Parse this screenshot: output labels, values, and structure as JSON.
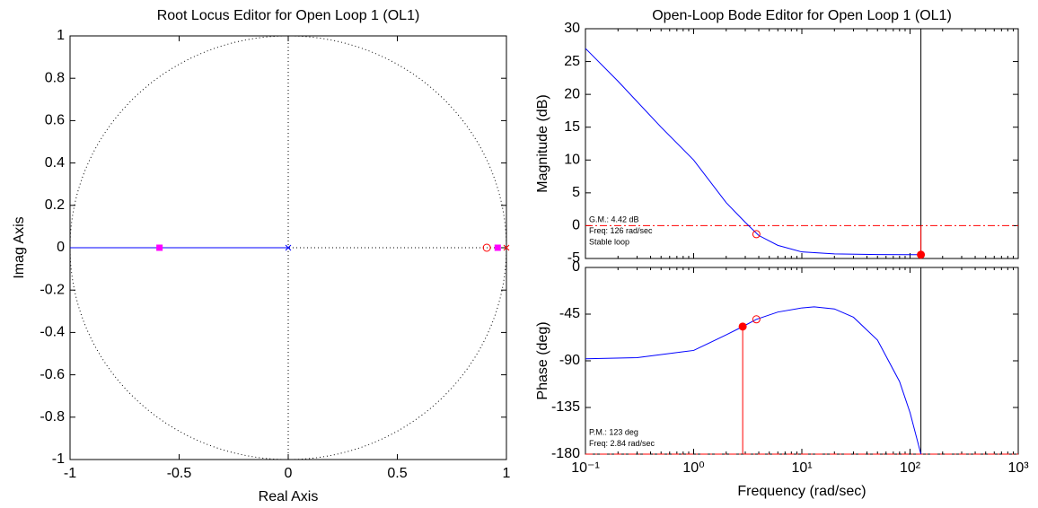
{
  "chart_data": [
    {
      "type": "root-locus",
      "title": "Root Locus Editor for Open Loop 1 (OL1)",
      "xlabel": "Real Axis",
      "ylabel": "Imag Axis",
      "xlim": [
        -1,
        1
      ],
      "ylim": [
        -1,
        1
      ],
      "xticks": [
        -1,
        -0.5,
        0,
        0.5,
        1
      ],
      "yticks": [
        -1,
        -0.8,
        -0.6,
        -0.4,
        -0.2,
        0,
        0.2,
        0.4,
        0.6,
        0.8,
        1
      ],
      "unit_circle": true,
      "origin_lines": true,
      "series": [
        {
          "kind": "line",
          "color": "#0000ff",
          "x": [
            -1,
            0
          ],
          "y": [
            0,
            0
          ]
        },
        {
          "kind": "x-marker",
          "color": "#0000ff",
          "x": [
            0
          ],
          "y": [
            0
          ]
        },
        {
          "kind": "x-marker",
          "color": "#ff0000",
          "x": [
            1
          ],
          "y": [
            0
          ]
        },
        {
          "kind": "circle",
          "color": "#ff0000",
          "x": [
            0.91
          ],
          "y": [
            0
          ]
        },
        {
          "kind": "square",
          "color": "#ff00ff",
          "x": [
            -0.59,
            0.96
          ],
          "y": [
            0,
            0
          ]
        }
      ]
    },
    {
      "type": "bode-magnitude",
      "title": "Open-Loop Bode Editor for Open Loop 1 (OL1)",
      "ylabel": "Magnitude (dB)",
      "log_x": true,
      "xlim": [
        0.1,
        1000
      ],
      "ylim": [
        -5,
        30
      ],
      "xticks": [
        0.1,
        1,
        10,
        100,
        1000
      ],
      "xtick_labels": false,
      "yticks": [
        -5,
        0,
        5,
        10,
        15,
        20,
        25,
        30
      ],
      "annotations": [
        "G.M.: 4.42 dB",
        "Freq: 126 rad/sec",
        "Stable loop"
      ],
      "series": [
        {
          "kind": "hline",
          "color": "#ff0000",
          "y": [
            0
          ]
        },
        {
          "kind": "vline",
          "color": "#000000",
          "x": [
            126
          ]
        },
        {
          "kind": "stem",
          "color": "#ff0000",
          "x": [
            126
          ],
          "y": [
            -4.42
          ],
          "base": 0
        },
        {
          "kind": "line",
          "color": "#0000ff",
          "x": [
            0.1,
            0.2,
            0.5,
            1,
            2,
            3,
            4,
            6,
            10,
            20,
            50,
            100,
            126
          ],
          "y": [
            27,
            22,
            15,
            10,
            3.5,
            0.5,
            -1.5,
            -3,
            -4,
            -4.3,
            -4.4,
            -4.42,
            -4.42
          ]
        },
        {
          "kind": "circle",
          "color": "#ff0000",
          "x": [
            3.8
          ],
          "y": [
            -1.3
          ]
        },
        {
          "kind": "dot",
          "color": "#ff0000",
          "x": [
            126
          ],
          "y": [
            -4.42
          ]
        }
      ]
    },
    {
      "type": "bode-phase",
      "ylabel": "Phase (deg)",
      "xlabel": "Frequency (rad/sec)",
      "log_x": true,
      "xlim": [
        0.1,
        1000
      ],
      "ylim": [
        -180,
        0
      ],
      "xticks": [
        {
          "value": 0.1,
          "label": "10⁻¹"
        },
        {
          "value": 1,
          "label": "10⁰"
        },
        {
          "value": 10,
          "label": "10¹"
        },
        {
          "value": 100,
          "label": "10²"
        },
        {
          "value": 1000,
          "label": "10³"
        }
      ],
      "yticks": [
        -180,
        -135,
        -90,
        -45,
        0
      ],
      "annotations": [
        "P.M.: 123 deg",
        "Freq: 2.84 rad/sec"
      ],
      "series": [
        {
          "kind": "hline",
          "color": "#ff0000",
          "y": [
            -180
          ]
        },
        {
          "kind": "vline",
          "color": "#000000",
          "x": [
            126
          ]
        },
        {
          "kind": "stem",
          "color": "#ff0000",
          "x": [
            2.84
          ],
          "y": [
            -57
          ],
          "base": -180
        },
        {
          "kind": "line",
          "color": "#0000ff",
          "x": [
            0.1,
            0.3,
            1,
            2,
            2.84,
            3.8,
            6,
            10,
            13,
            20,
            30,
            50,
            80,
            100,
            126
          ],
          "y": [
            -88,
            -87,
            -80,
            -65,
            -57,
            -50,
            -43,
            -39,
            -38,
            -40,
            -48,
            -70,
            -110,
            -140,
            -180
          ]
        },
        {
          "kind": "circle",
          "color": "#ff0000",
          "x": [
            3.8
          ],
          "y": [
            -50
          ]
        },
        {
          "kind": "dot",
          "color": "#ff0000",
          "x": [
            2.84
          ],
          "y": [
            -57
          ]
        }
      ]
    }
  ]
}
